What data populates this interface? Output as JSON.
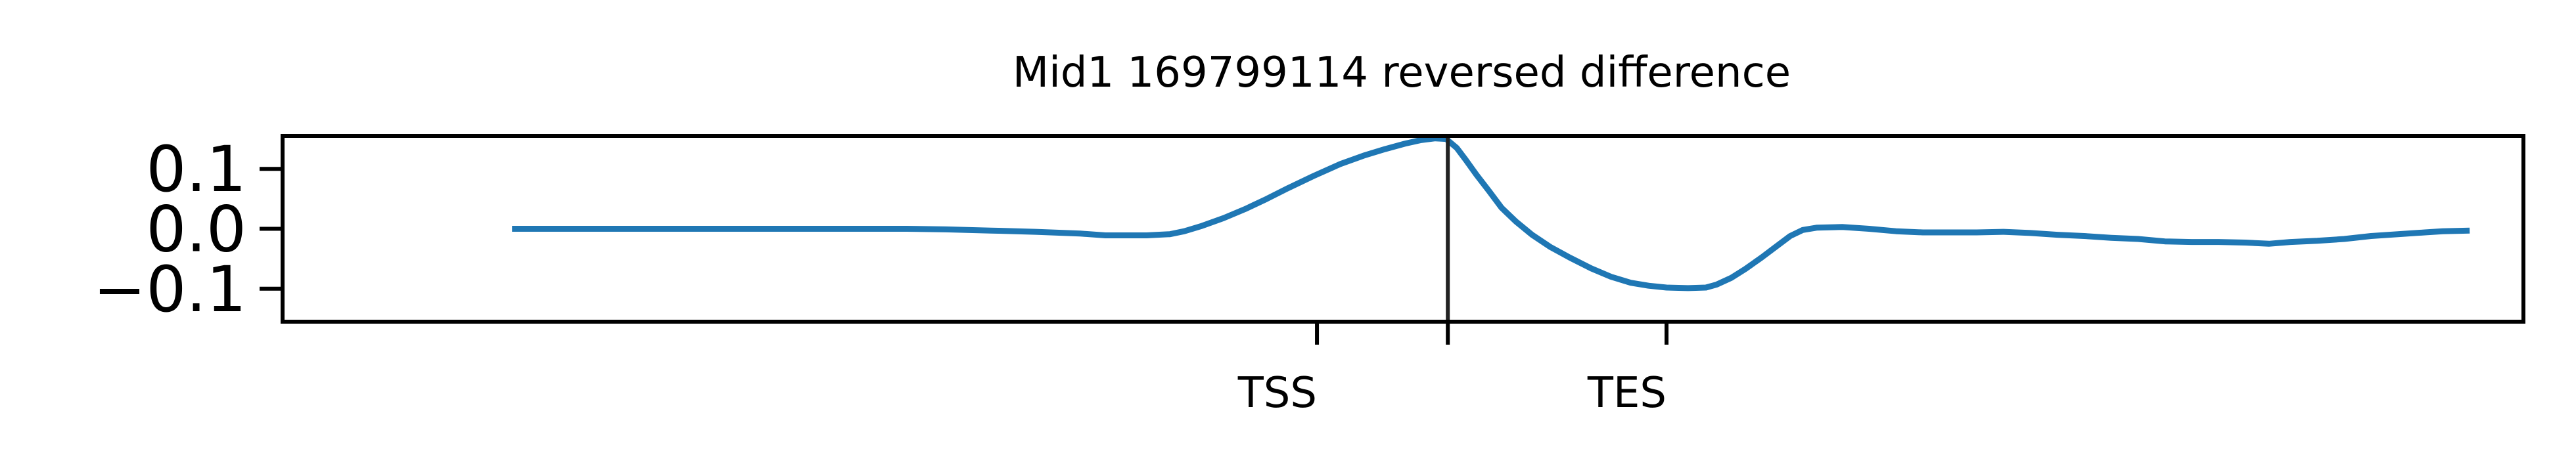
{
  "chart_data": {
    "type": "line",
    "title": "Mid1 169799114 reversed difference",
    "xlabel": "",
    "ylabel": "",
    "xlim": [
      -0.1,
      1.15
    ],
    "ylim": [
      -0.155,
      0.155
    ],
    "yticks": [
      {
        "value": 0.1,
        "label": "0.1"
      },
      {
        "value": 0.0,
        "label": "0.0"
      },
      {
        "value": -0.1,
        "label": "−0.1"
      }
    ],
    "xticks": [
      {
        "value": 0.477,
        "label": "TSS"
      },
      {
        "value": 0.55,
        "label": ""
      },
      {
        "value": 0.672,
        "label": "TES"
      }
    ],
    "vline_x": 0.55,
    "grid": false,
    "legend": "none",
    "series": [
      {
        "color": "#1f77b4",
        "points": [
          [
            0.028,
            0.0
          ],
          [
            0.1,
            0.0
          ],
          [
            0.2,
            0.0
          ],
          [
            0.248,
            0.0
          ],
          [
            0.27,
            -0.001
          ],
          [
            0.295,
            -0.003
          ],
          [
            0.32,
            -0.005
          ],
          [
            0.345,
            -0.008
          ],
          [
            0.359,
            -0.011
          ],
          [
            0.368,
            -0.011
          ],
          [
            0.382,
            -0.011
          ],
          [
            0.395,
            -0.009
          ],
          [
            0.403,
            -0.004
          ],
          [
            0.413,
            0.005
          ],
          [
            0.425,
            0.018
          ],
          [
            0.437,
            0.033
          ],
          [
            0.449,
            0.05
          ],
          [
            0.461,
            0.068
          ],
          [
            0.475,
            0.088
          ],
          [
            0.49,
            0.108
          ],
          [
            0.503,
            0.122
          ],
          [
            0.515,
            0.133
          ],
          [
            0.526,
            0.142
          ],
          [
            0.535,
            0.148
          ],
          [
            0.543,
            0.151
          ],
          [
            0.549,
            0.15
          ],
          [
            0.555,
            0.135
          ],
          [
            0.56,
            0.115
          ],
          [
            0.566,
            0.09
          ],
          [
            0.573,
            0.063
          ],
          [
            0.58,
            0.035
          ],
          [
            0.588,
            0.012
          ],
          [
            0.597,
            -0.01
          ],
          [
            0.607,
            -0.03
          ],
          [
            0.618,
            -0.048
          ],
          [
            0.63,
            -0.066
          ],
          [
            0.641,
            -0.08
          ],
          [
            0.652,
            -0.09
          ],
          [
            0.662,
            -0.095
          ],
          [
            0.672,
            -0.098
          ],
          [
            0.684,
            -0.099
          ],
          [
            0.694,
            -0.098
          ],
          [
            0.7,
            -0.093
          ],
          [
            0.708,
            -0.082
          ],
          [
            0.716,
            -0.067
          ],
          [
            0.725,
            -0.048
          ],
          [
            0.733,
            -0.03
          ],
          [
            0.741,
            -0.012
          ],
          [
            0.748,
            -0.002
          ],
          [
            0.756,
            0.002
          ],
          [
            0.77,
            0.003
          ],
          [
            0.785,
            0.0
          ],
          [
            0.8,
            -0.004
          ],
          [
            0.815,
            -0.006
          ],
          [
            0.83,
            -0.006
          ],
          [
            0.845,
            -0.006
          ],
          [
            0.86,
            -0.005
          ],
          [
            0.875,
            -0.007
          ],
          [
            0.89,
            -0.01
          ],
          [
            0.905,
            -0.012
          ],
          [
            0.92,
            -0.015
          ],
          [
            0.935,
            -0.017
          ],
          [
            0.95,
            -0.021
          ],
          [
            0.965,
            -0.022
          ],
          [
            0.98,
            -0.022
          ],
          [
            0.995,
            -0.023
          ],
          [
            1.008,
            -0.025
          ],
          [
            1.02,
            -0.022
          ],
          [
            1.035,
            -0.02
          ],
          [
            1.05,
            -0.017
          ],
          [
            1.065,
            -0.012
          ],
          [
            1.08,
            -0.009
          ],
          [
            1.095,
            -0.006
          ],
          [
            1.105,
            -0.004
          ],
          [
            1.12,
            -0.003
          ]
        ]
      }
    ]
  }
}
